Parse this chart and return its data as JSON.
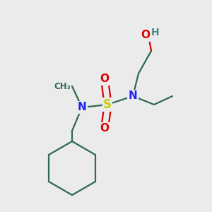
{
  "background_color": "#ebebeb",
  "atom_colors": {
    "S": "#cccc00",
    "N": "#2222ee",
    "O": "#dd0000",
    "C": "#2d6a4f",
    "H": "#4a8a8a"
  },
  "figsize": [
    3.0,
    3.0
  ],
  "dpi": 100
}
